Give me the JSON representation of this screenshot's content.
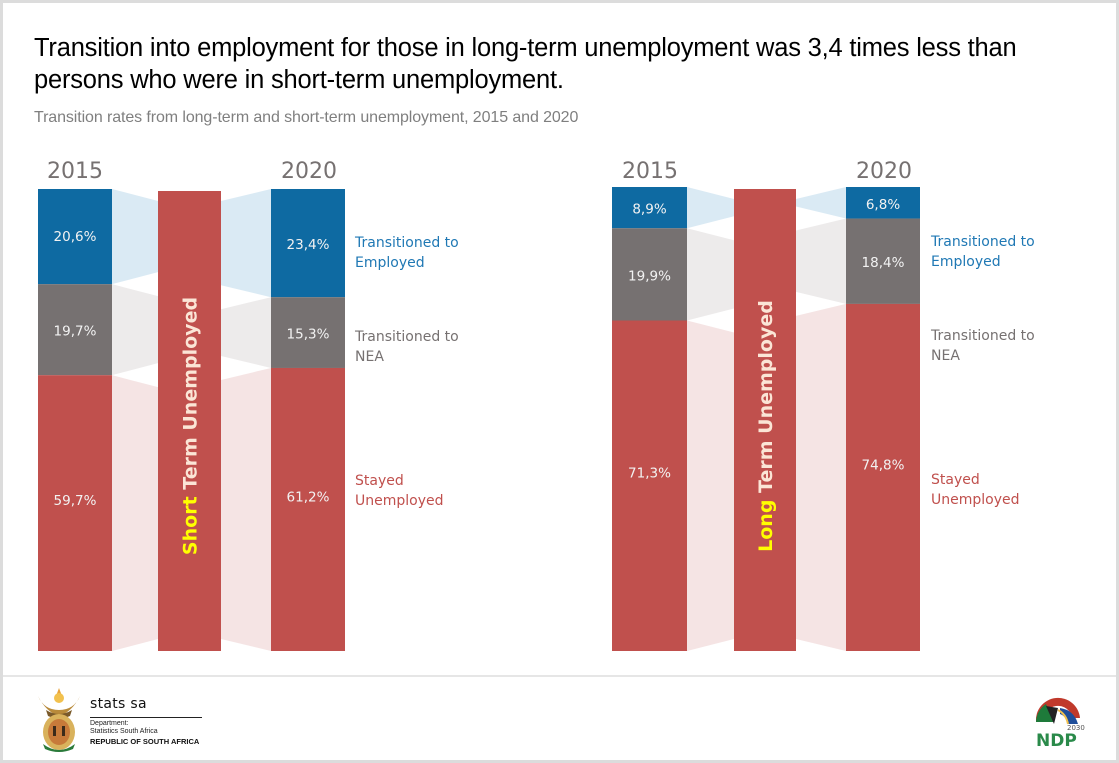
{
  "header": {
    "title": "Transition into employment for those in long-term unemployment was 3,4 times less than persons who were in short-term unemployment.",
    "subtitle": "Transition rates from long-term and short-term unemployment, 2015 and 2020"
  },
  "colors": {
    "employed": "#0e6aa2",
    "nea": "#767171",
    "unemployed": "#c0504d",
    "employed_flow": "#d6e8f3",
    "nea_flow": "#ebe9e9",
    "unemployed_flow": "#f4e1e1",
    "highlight": "#ffff00",
    "label_light": "#fbe5d6",
    "legend_employed": "#1f78b4",
    "legend_nea": "#767171",
    "legend_unemployed": "#c0504d"
  },
  "chart_data": [
    {
      "type": "bar",
      "stacked": true,
      "title": "Short Term Unemployed",
      "title_highlight": "Short",
      "title_rest": " Term Unemployed",
      "categories": [
        "2015",
        "2020"
      ],
      "series": [
        {
          "name": "Transitioned to Employed",
          "legend": [
            "Transitioned to",
            "Employed"
          ],
          "values": [
            20.6,
            23.4
          ],
          "labels": [
            "20,6%",
            "23,4%"
          ]
        },
        {
          "name": "Transitioned to NEA",
          "legend": [
            "Transitioned to",
            "NEA"
          ],
          "values": [
            19.7,
            15.3
          ],
          "labels": [
            "19,7%",
            "15,3%"
          ]
        },
        {
          "name": "Stayed Unemployed",
          "legend": [
            "Stayed",
            "Unemployed"
          ],
          "values": [
            59.7,
            61.2
          ],
          "labels": [
            "59,7%",
            "61,2%"
          ]
        }
      ],
      "ylim": [
        0,
        100
      ],
      "unit": "%"
    },
    {
      "type": "bar",
      "stacked": true,
      "title": "Long Term Unemployed",
      "title_highlight": "Long",
      "title_rest": " Term Unemployed",
      "categories": [
        "2015",
        "2020"
      ],
      "series": [
        {
          "name": "Transitioned to Employed",
          "legend": [
            "Transitioned to",
            "Employed"
          ],
          "values": [
            8.9,
            6.8
          ],
          "labels": [
            "8,9%",
            "6,8%"
          ]
        },
        {
          "name": "Transitioned to NEA",
          "legend": [
            "Transitioned to",
            "NEA"
          ],
          "values": [
            19.9,
            18.4
          ],
          "labels": [
            "19,9%",
            "18,4%"
          ]
        },
        {
          "name": "Stayed Unemployed",
          "legend": [
            "Stayed",
            "Unemployed"
          ],
          "values": [
            71.3,
            74.8
          ],
          "labels": [
            "71,3%",
            "74,8%"
          ]
        }
      ],
      "ylim": [
        0,
        100
      ],
      "unit": "%"
    }
  ],
  "footer": {
    "org_name": "stats sa",
    "dept_line1": "Department:",
    "dept_line2": "Statistics South Africa",
    "country": "REPUBLIC OF SOUTH AFRICA",
    "ndp_year": "2030",
    "ndp_label": "NDP",
    "logo_left_icon": "coat-of-arms-icon",
    "logo_right_icon": "ndp-logo-icon"
  }
}
